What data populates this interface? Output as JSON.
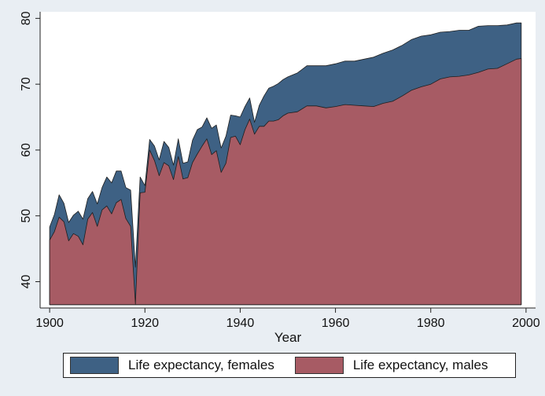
{
  "chart_data": {
    "type": "area",
    "xlabel": "Year",
    "ylabel": "",
    "xlim": [
      1898,
      2002
    ],
    "ylim": [
      36,
      81
    ],
    "area_base": 36.5,
    "xticks": [
      1900,
      1920,
      1940,
      1960,
      1980,
      2000
    ],
    "yticks": [
      40,
      50,
      60,
      70,
      80
    ],
    "grid": false,
    "legend_position": "bottom",
    "series": [
      {
        "name": "Life expectancy, females",
        "color": "#3e6184",
        "x": [
          1900,
          1901,
          1902,
          1903,
          1904,
          1905,
          1906,
          1907,
          1908,
          1909,
          1910,
          1911,
          1912,
          1913,
          1914,
          1915,
          1916,
          1917,
          1918,
          1919,
          1920,
          1921,
          1922,
          1923,
          1924,
          1925,
          1926,
          1927,
          1928,
          1929,
          1930,
          1931,
          1932,
          1933,
          1934,
          1935,
          1936,
          1937,
          1938,
          1939,
          1940,
          1941,
          1942,
          1943,
          1944,
          1945,
          1946,
          1947,
          1948,
          1949,
          1950,
          1952,
          1954,
          1956,
          1958,
          1960,
          1962,
          1964,
          1966,
          1968,
          1970,
          1972,
          1974,
          1976,
          1978,
          1980,
          1982,
          1984,
          1986,
          1988,
          1990,
          1992,
          1994,
          1996,
          1998,
          1999
        ],
        "values": [
          48.3,
          50.2,
          53.2,
          51.9,
          49.0,
          50.1,
          50.7,
          49.5,
          52.6,
          53.7,
          51.8,
          54.3,
          55.9,
          55.0,
          56.8,
          56.8,
          54.3,
          53.9,
          42.2,
          55.9,
          54.6,
          61.6,
          60.6,
          58.5,
          61.3,
          60.4,
          57.7,
          61.7,
          58.0,
          58.2,
          61.5,
          63.1,
          63.5,
          64.9,
          63.3,
          63.8,
          60.3,
          62.1,
          65.3,
          65.2,
          65.0,
          66.6,
          67.9,
          64.2,
          66.8,
          68.2,
          69.4,
          69.7,
          70.1,
          70.7,
          71.1,
          71.7,
          72.8,
          72.8,
          72.8,
          73.1,
          73.5,
          73.5,
          73.8,
          74.1,
          74.7,
          75.2,
          75.9,
          76.8,
          77.3,
          77.5,
          77.9,
          78.0,
          78.2,
          78.2,
          78.8,
          78.9,
          78.9,
          79.0,
          79.3,
          79.3
        ]
      },
      {
        "name": "Life expectancy, males",
        "color": "#a75b64",
        "x": [
          1900,
          1901,
          1902,
          1903,
          1904,
          1905,
          1906,
          1907,
          1908,
          1909,
          1910,
          1911,
          1912,
          1913,
          1914,
          1915,
          1916,
          1917,
          1918,
          1919,
          1920,
          1921,
          1922,
          1923,
          1924,
          1925,
          1926,
          1927,
          1928,
          1929,
          1930,
          1931,
          1932,
          1933,
          1934,
          1935,
          1936,
          1937,
          1938,
          1939,
          1940,
          1941,
          1942,
          1943,
          1944,
          1945,
          1946,
          1947,
          1948,
          1949,
          1950,
          1952,
          1954,
          1956,
          1958,
          1960,
          1962,
          1964,
          1966,
          1968,
          1970,
          1972,
          1974,
          1976,
          1978,
          1980,
          1982,
          1984,
          1986,
          1988,
          1990,
          1992,
          1994,
          1996,
          1998,
          1999
        ],
        "values": [
          46.3,
          47.6,
          49.8,
          49.1,
          46.2,
          47.3,
          46.9,
          45.6,
          49.5,
          50.5,
          48.4,
          50.9,
          51.5,
          50.3,
          52.0,
          52.5,
          49.6,
          48.4,
          36.6,
          53.5,
          53.6,
          60.0,
          58.4,
          56.1,
          58.1,
          57.6,
          55.5,
          59.0,
          55.6,
          55.8,
          58.1,
          59.4,
          60.6,
          61.7,
          59.3,
          59.9,
          56.6,
          58.0,
          61.9,
          62.1,
          60.8,
          63.1,
          64.7,
          62.4,
          63.6,
          63.6,
          64.4,
          64.4,
          64.6,
          65.2,
          65.6,
          65.8,
          66.7,
          66.7,
          66.4,
          66.6,
          66.9,
          66.8,
          66.7,
          66.6,
          67.1,
          67.4,
          68.2,
          69.1,
          69.6,
          70.0,
          70.8,
          71.1,
          71.2,
          71.4,
          71.8,
          72.3,
          72.4,
          73.1,
          73.8,
          73.9
        ]
      }
    ]
  }
}
